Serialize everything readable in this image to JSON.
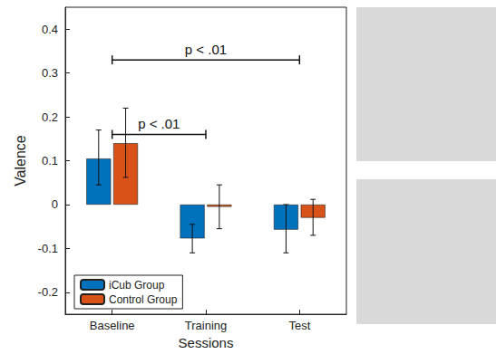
{
  "chart_data": {
    "type": "bar",
    "x_label": "Sessions",
    "y_label": "Valence",
    "categories": [
      "Baseline",
      "Training",
      "Test"
    ],
    "series": [
      {
        "name": "iCub Group",
        "color": "#0072BD",
        "values": [
          0.105,
          -0.077,
          -0.057
        ],
        "err_low": [
          0.045,
          -0.11,
          -0.11
        ],
        "err_high": [
          0.17,
          -0.045,
          0.0
        ]
      },
      {
        "name": "Control Group",
        "color": "#D95319",
        "values": [
          0.14,
          -0.005,
          -0.03
        ],
        "err_low": [
          0.062,
          -0.055,
          -0.07
        ],
        "err_high": [
          0.22,
          0.045,
          0.012
        ]
      }
    ],
    "ylim": [
      -0.25,
      0.45
    ],
    "yticks": [
      -0.2,
      -0.1,
      0,
      0.1,
      0.2,
      0.3,
      0.4
    ],
    "grid": false,
    "legend": "lower left",
    "annotations": [
      {
        "text": "p < .01",
        "from": "Baseline",
        "to": "Training",
        "y": 0.16
      },
      {
        "text": "p < .01",
        "from": "Baseline",
        "to": "Test",
        "y": 0.33
      }
    ]
  }
}
